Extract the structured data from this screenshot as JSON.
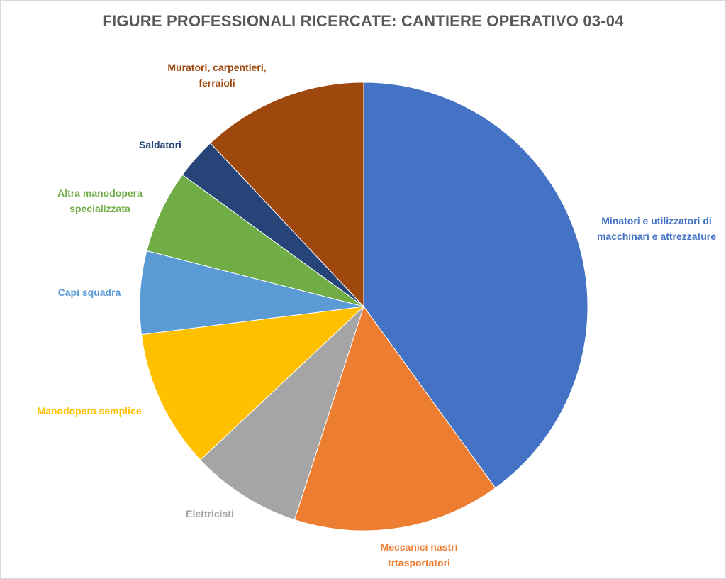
{
  "chart_data": {
    "type": "pie",
    "title": "FIGURE PROFESSIONALI RICERCATE: CANTIERE OPERATIVO 03-04",
    "slices": [
      {
        "label": "Minatori e utilizzatori di macchinari e attrezzature",
        "value": 40,
        "color": "#4472C4",
        "label_color": "#4472C4"
      },
      {
        "label": "Meccanici nastri trtasportatori",
        "value": 15,
        "color": "#ED7D31",
        "label_color": "#ED7D31"
      },
      {
        "label": "Elettricisti",
        "value": 8,
        "color": "#A5A5A5",
        "label_color": "#A5A5A5"
      },
      {
        "label": "Manodopera semplice",
        "value": 10,
        "color": "#FFC000",
        "label_color": "#FFC000"
      },
      {
        "label": "Capi squadra",
        "value": 6,
        "color": "#5B9BD5",
        "label_color": "#5B9BD5"
      },
      {
        "label": "Altra manodopera specializzata",
        "value": 6,
        "color": "#70AD47",
        "label_color": "#70AD47"
      },
      {
        "label": "Saldatori",
        "value": 3,
        "color": "#264478",
        "label_color": "#264478"
      },
      {
        "label": "Muratori, carpentieri, ferraioli",
        "value": 12,
        "color": "#9E480E",
        "label_color": "#9E480E"
      }
    ]
  }
}
